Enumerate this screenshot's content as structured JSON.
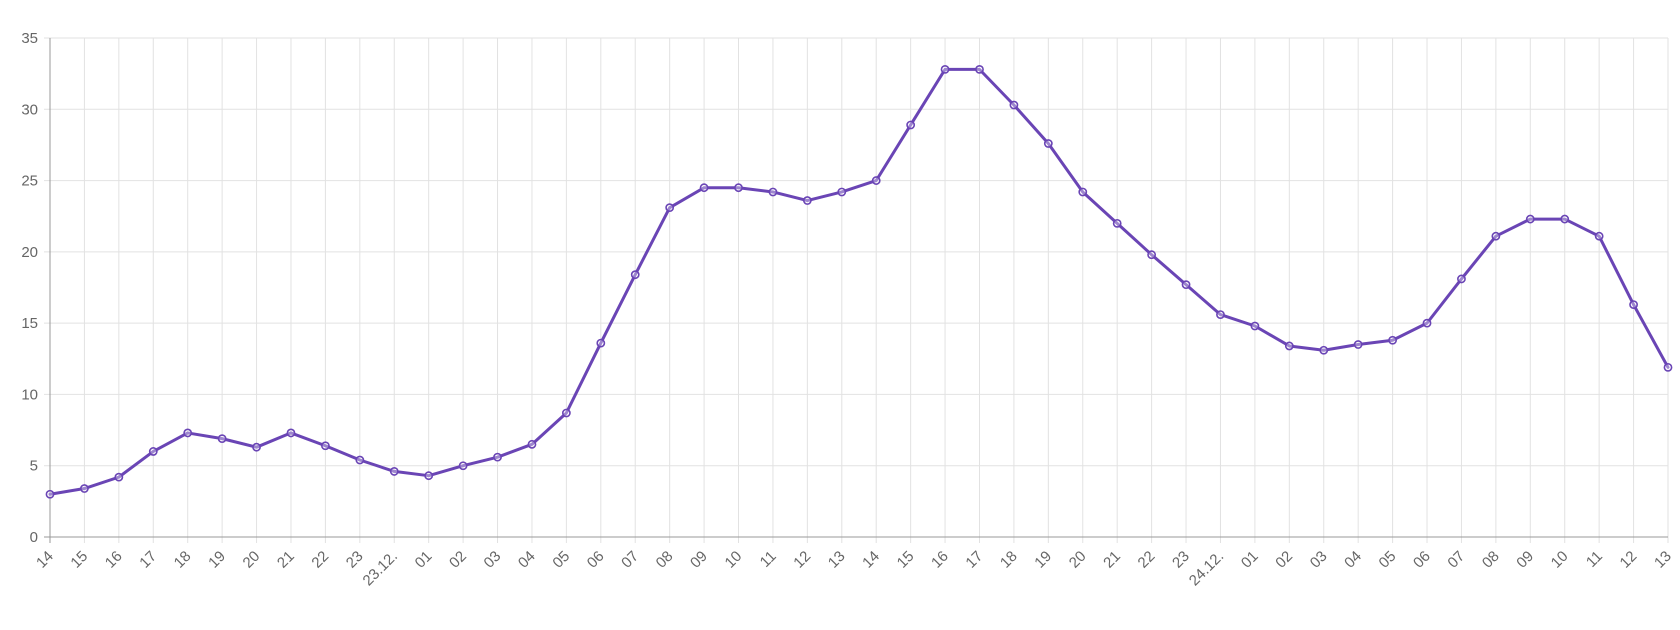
{
  "chart_data": {
    "type": "line",
    "title": "",
    "xlabel": "",
    "ylabel": "",
    "ylim": [
      0,
      35
    ],
    "yticks": [
      0,
      5,
      10,
      15,
      20,
      25,
      30,
      35
    ],
    "grid": true,
    "legend": "none",
    "categories": [
      "14",
      "15",
      "16",
      "17",
      "18",
      "19",
      "20",
      "21",
      "22",
      "23",
      "23.12.",
      "01",
      "02",
      "03",
      "04",
      "05",
      "06",
      "07",
      "08",
      "09",
      "10",
      "11",
      "12",
      "13",
      "14",
      "15",
      "16",
      "17",
      "18",
      "19",
      "20",
      "21",
      "22",
      "23",
      "24.12.",
      "01",
      "02",
      "03",
      "04",
      "05",
      "06",
      "07",
      "08",
      "09",
      "10",
      "11",
      "12",
      "13"
    ],
    "series": [
      {
        "values": [
          3.0,
          3.4,
          4.2,
          6.0,
          7.3,
          6.9,
          6.3,
          7.3,
          6.4,
          5.4,
          4.6,
          4.3,
          5.0,
          5.6,
          6.5,
          8.7,
          13.6,
          18.4,
          23.1,
          24.5,
          24.5,
          24.2,
          23.6,
          24.2,
          25.0,
          28.9,
          32.8,
          32.8,
          30.3,
          27.6,
          24.2,
          22.0,
          19.8,
          17.7,
          15.6,
          14.8,
          13.4,
          13.1,
          13.5,
          13.8,
          15.0,
          18.1,
          21.1,
          22.3,
          22.3,
          21.1,
          16.3,
          11.9
        ]
      }
    ]
  },
  "colors": {
    "line": "#6a45b5",
    "grid": "#e2e2e2",
    "axis": "#999999",
    "label": "#666666"
  }
}
